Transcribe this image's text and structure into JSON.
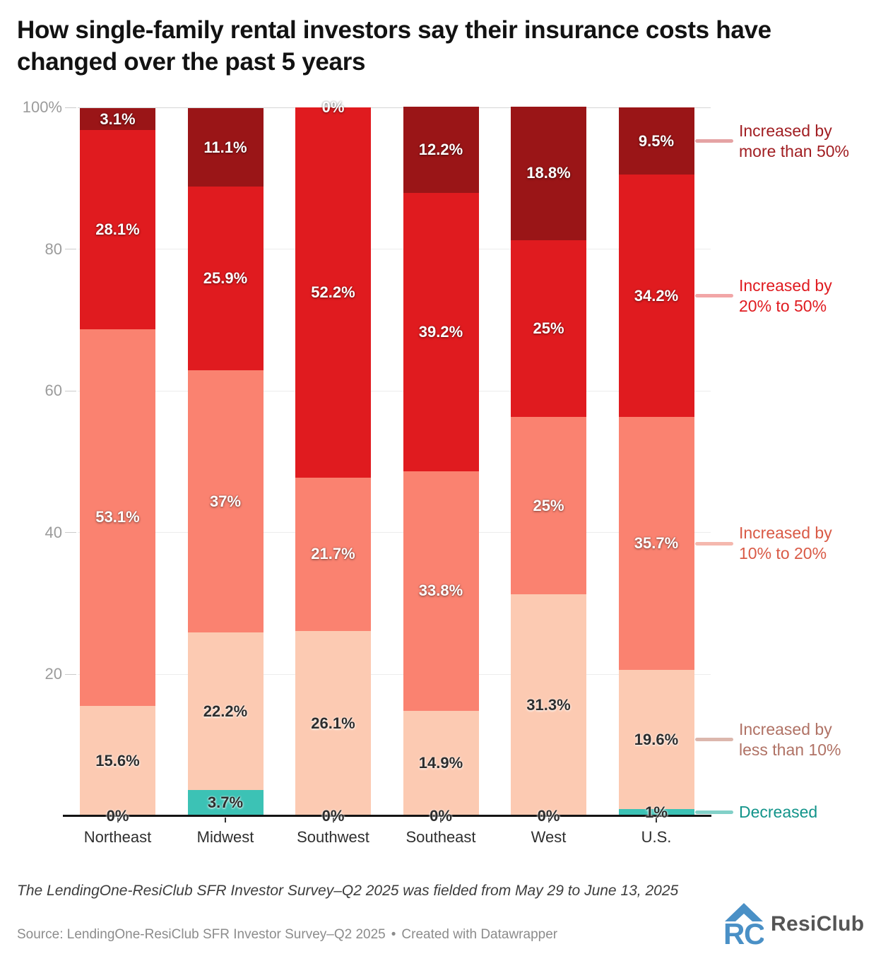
{
  "title": "How single-family rental investors say their insurance costs have changed over the past 5 years",
  "chart_data": {
    "type": "bar",
    "stacked": true,
    "unit": "%",
    "ylim": [
      0,
      100
    ],
    "grid": "horizontal",
    "legend_position": "right",
    "legend_anchor_category": "U.S.",
    "yticks": [
      {
        "value": 100,
        "label": "100%"
      },
      {
        "value": 80,
        "label": "80"
      },
      {
        "value": 60,
        "label": "60"
      },
      {
        "value": 40,
        "label": "40"
      },
      {
        "value": 20,
        "label": "20"
      }
    ],
    "categories": [
      "Northeast",
      "Midwest",
      "Southwest",
      "Southeast",
      "West",
      "U.S."
    ],
    "series": [
      {
        "name": "Decreased",
        "color": "#3cc2b5",
        "label_style": "dark",
        "values": [
          0,
          3.7,
          0,
          0,
          0,
          1
        ],
        "labels": [
          "0%",
          "3.7%",
          "0%",
          "0%",
          "0%",
          "1%"
        ]
      },
      {
        "name": "Increased by less than 10%",
        "color": "#fccab2",
        "label_style": "dark",
        "values": [
          15.6,
          22.2,
          26.1,
          14.9,
          31.3,
          19.6
        ],
        "labels": [
          "15.6%",
          "22.2%",
          "26.1%",
          "14.9%",
          "31.3%",
          "19.6%"
        ]
      },
      {
        "name": "Increased by 10% to 20%",
        "color": "#fa8270",
        "label_style": "light",
        "values": [
          53.1,
          37,
          21.7,
          33.8,
          25,
          35.7
        ],
        "labels": [
          "53.1%",
          "37%",
          "21.7%",
          "33.8%",
          "25%",
          "35.7%"
        ]
      },
      {
        "name": "Increased by 20% to 50%",
        "color": "#e01b1f",
        "label_style": "light",
        "values": [
          28.1,
          25.9,
          52.2,
          39.2,
          25,
          34.2
        ],
        "labels": [
          "28.1%",
          "25.9%",
          "52.2%",
          "39.2%",
          "25%",
          "34.2%"
        ]
      },
      {
        "name": "Increased by more than 50%",
        "color": "#9a1517",
        "label_style": "light",
        "values": [
          3.1,
          11.1,
          0,
          12.2,
          18.8,
          9.5
        ],
        "labels": [
          "3.1%",
          "11.1%",
          "0%",
          "12.2%",
          "18.8%",
          "9.5%"
        ]
      }
    ],
    "legend": [
      {
        "series_index": 4,
        "lines": [
          "Increased by",
          "more than 50%"
        ],
        "text_color": "#a11e22",
        "connector_color": "#e5a3a4"
      },
      {
        "series_index": 3,
        "lines": [
          "Increased by",
          "20% to 50%"
        ],
        "text_color": "#e01b20",
        "connector_color": "#f2a6a7"
      },
      {
        "series_index": 2,
        "lines": [
          "Increased by",
          "10% to 20%"
        ],
        "text_color": "#d95a46",
        "connector_color": "#f5b8ae"
      },
      {
        "series_index": 1,
        "lines": [
          "Increased by",
          "less than 10%"
        ],
        "text_color": "#b07265",
        "connector_color": "#dcb7ad"
      },
      {
        "series_index": 0,
        "lines": [
          "Decreased"
        ],
        "text_color": "#12948a",
        "connector_color": "#82d0c8"
      }
    ]
  },
  "footer": {
    "note": "The LendingOne-ResiClub SFR Investor Survey–Q2 2025 was fielded from May 29 to June 13, 2025",
    "source": "Source: LendingOne-ResiClub SFR Investor Survey–Q2 2025",
    "separator": "•",
    "attribution": "Created with Datawrapper",
    "logo_text": "ResiClub",
    "logo_color": "#4a90c6"
  }
}
